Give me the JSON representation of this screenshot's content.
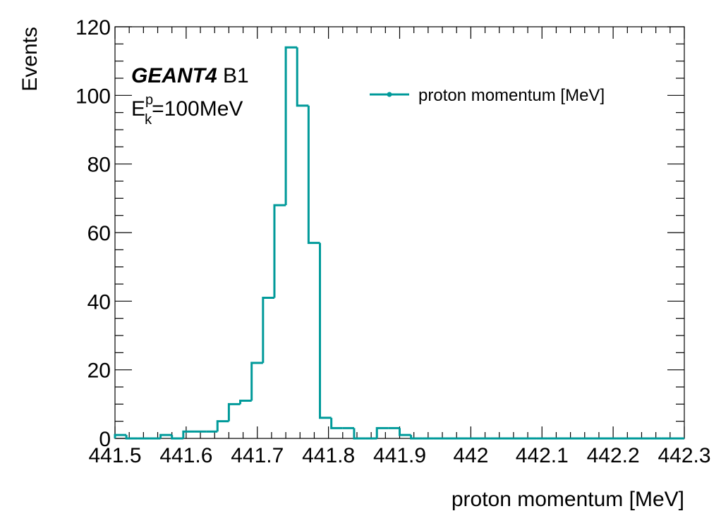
{
  "chart_data": {
    "type": "histogram",
    "xlabel": "proton momentum [MeV]",
    "ylabel": "Events",
    "annotation": {
      "bold": "GEANT4",
      "rest": "B1",
      "energy_symbol": "E",
      "energy_sup": "p",
      "energy_sub": "k",
      "energy_value": "=100MeV"
    },
    "bins": [
      441.5,
      441.516,
      441.532,
      441.548,
      441.564,
      441.58,
      441.596,
      441.612,
      441.628,
      441.644,
      441.66,
      441.676,
      441.692,
      441.708,
      441.724,
      441.74,
      441.756,
      441.772,
      441.788,
      441.804,
      441.82,
      441.836,
      441.852,
      441.868,
      441.884,
      441.9,
      441.916,
      441.932,
      441.948,
      441.964,
      441.98,
      441.996,
      442.012,
      442.028,
      442.044,
      442.06,
      442.076,
      442.092,
      442.108,
      442.124,
      442.14,
      442.156,
      442.172,
      442.188,
      442.204,
      442.22,
      442.236,
      442.252,
      442.268,
      442.284,
      442.3
    ],
    "series": [
      {
        "name": "proton momentum [MeV]",
        "color": "#009a9a",
        "values": [
          1,
          0,
          0,
          0,
          1,
          0,
          2,
          2,
          2,
          5,
          10,
          11,
          22,
          41,
          68,
          114,
          97,
          57,
          6,
          3,
          3,
          0,
          0,
          3,
          3,
          1,
          0,
          0,
          0,
          0,
          0,
          0,
          0,
          0,
          0,
          0,
          0,
          0,
          0,
          0,
          0,
          0,
          0,
          0,
          0,
          0,
          0,
          0,
          0,
          0
        ]
      }
    ],
    "xlim": [
      441.5,
      442.3
    ],
    "xticks": [
      441.5,
      441.6,
      441.7,
      441.8,
      441.9,
      442,
      442.1,
      442.2,
      442.3
    ],
    "ylim": [
      0,
      120
    ],
    "yticks": [
      0,
      20,
      40,
      60,
      80,
      100,
      120
    ],
    "legend": "upper right",
    "grid": false
  }
}
